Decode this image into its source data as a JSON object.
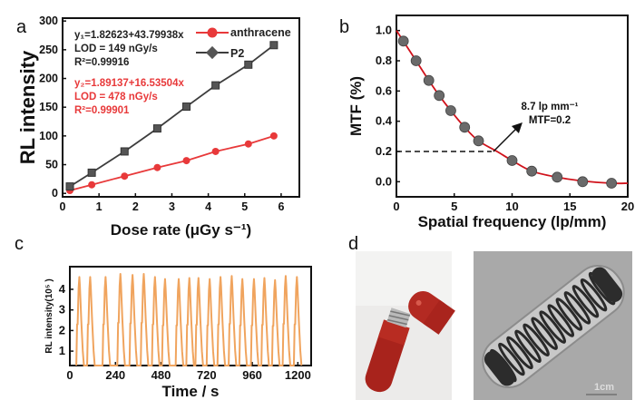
{
  "panels": {
    "a": "a",
    "b": "b",
    "c": "c",
    "d": "d"
  },
  "colors": {
    "p2": "#3d3d3d",
    "anthracene": "#e8393a",
    "mtf_curve": "#d0121b",
    "mtf_points": "#6a6a6a",
    "rl_trace": "#f0a45e"
  },
  "chart_data": [
    {
      "id": "a",
      "type": "line",
      "xlabel": "Dose rate (μGy s⁻¹)",
      "ylabel": "RL intensity",
      "xlim": [
        0,
        6.5
      ],
      "ylim": [
        -6,
        305
      ],
      "xticks": [
        0,
        1,
        2,
        3,
        4,
        5,
        6
      ],
      "yticks": [
        0,
        50,
        100,
        150,
        200,
        250,
        300
      ],
      "legend_position": "top-right",
      "series": [
        {
          "name": "anthracene",
          "marker": "circle",
          "x": [
            0.2,
            0.8,
            1.7,
            2.6,
            3.4,
            4.2,
            5.1,
            5.8
          ],
          "y": [
            5,
            15,
            30,
            45,
            57,
            73,
            86,
            100
          ]
        },
        {
          "name": "P2",
          "marker": "square",
          "x": [
            0.2,
            0.8,
            1.7,
            2.6,
            3.4,
            4.2,
            5.1,
            5.8
          ],
          "y": [
            12,
            36,
            73,
            113,
            151,
            188,
            224,
            258
          ]
        }
      ],
      "annotations": {
        "p2": [
          "y₁=1.82623+43.79938x",
          "LOD = 149 nGy/s",
          "R²=0.99916"
        ],
        "anthracene": [
          "y₂=1.89137+16.53504x",
          "LOD = 478 nGy/s",
          "R²=0.99901"
        ]
      }
    },
    {
      "id": "b",
      "type": "scatter",
      "xlabel": "Spatial frequency (lp/mm)",
      "ylabel": "MTF (%)",
      "xlim": [
        0,
        20
      ],
      "ylim": [
        -0.1,
        1.1
      ],
      "xticks": [
        0,
        5,
        10,
        15,
        20
      ],
      "yticks": [
        "0.0",
        "0.2",
        "0.4",
        "0.6",
        "0.8",
        "1.0"
      ],
      "points": {
        "x": [
          0.6,
          1.7,
          2.8,
          3.7,
          4.7,
          5.9,
          7.1,
          10.0,
          11.7,
          13.9,
          16.1,
          18.6
        ],
        "y": [
          0.93,
          0.8,
          0.67,
          0.57,
          0.47,
          0.36,
          0.27,
          0.14,
          0.07,
          0.03,
          0.0,
          -0.01
        ]
      },
      "fit_curve": {
        "x": [
          0,
          0.6,
          1.7,
          2.8,
          3.7,
          4.7,
          5.9,
          7.1,
          8.7,
          10.0,
          11.7,
          13.9,
          16.1,
          18.6,
          20
        ],
        "y": [
          1.0,
          0.93,
          0.8,
          0.67,
          0.57,
          0.47,
          0.36,
          0.27,
          0.2,
          0.14,
          0.07,
          0.03,
          0.005,
          -0.01,
          -0.01
        ]
      },
      "reference": {
        "x": 8.7,
        "y": 0.2
      },
      "annotation": [
        "8.7 lp mm⁻¹",
        "MTF=0.2"
      ]
    },
    {
      "id": "c",
      "type": "line",
      "xlabel": "Time / s",
      "ylabel": "RL intensity(10⁵ )",
      "xlim": [
        0,
        1270
      ],
      "ylim": [
        0.3,
        5.1
      ],
      "xticks": [
        0,
        240,
        480,
        720,
        960,
        1200
      ],
      "yticks": [
        1,
        2,
        3,
        4
      ],
      "peaks": {
        "time": [
          50,
          107,
          188,
          266,
          330,
          389,
          448,
          501,
          573,
          629,
          677,
          736,
          793,
          852,
          908,
          969,
          1024,
          1080,
          1136,
          1195
        ],
        "intensity": [
          4.6,
          4.6,
          4.6,
          4.75,
          4.7,
          4.75,
          4.6,
          4.5,
          4.5,
          4.55,
          4.55,
          4.5,
          4.6,
          4.65,
          4.5,
          4.5,
          4.55,
          4.45,
          4.65,
          4.6
        ]
      }
    }
  ],
  "photos": {
    "scale_bar_label": "1cm"
  }
}
